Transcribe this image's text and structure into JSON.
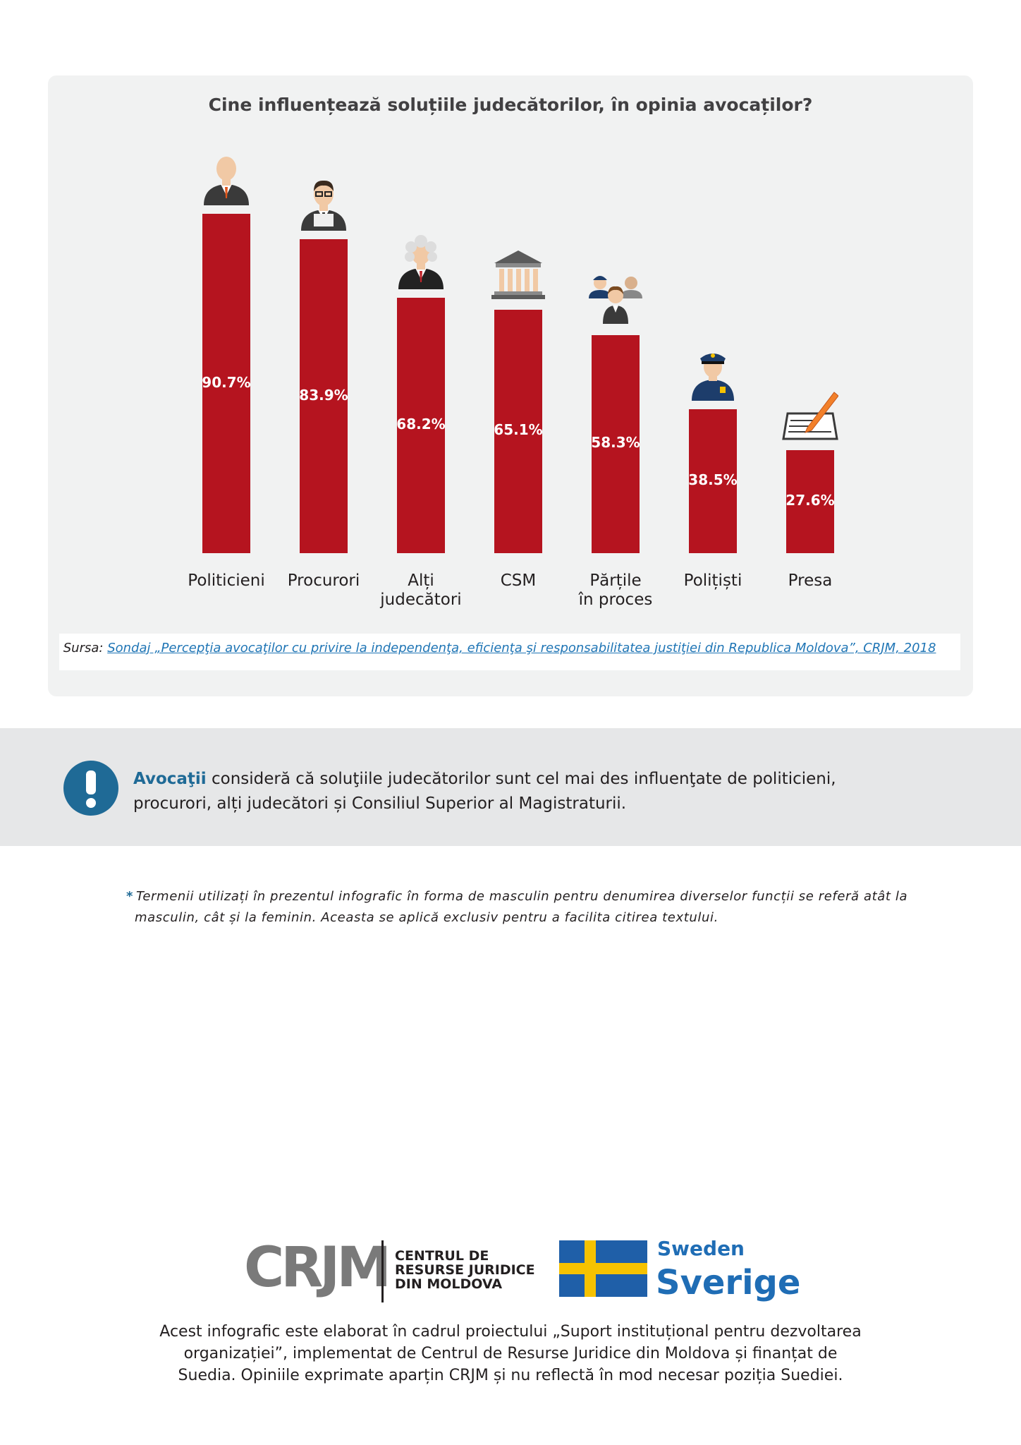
{
  "chart_data": {
    "type": "bar",
    "title": "Cine influențează soluțiile judecătorilor, în opinia avocaților?",
    "categories": [
      "Politicieni",
      "Procurori",
      "Alți\njudecători",
      "CSM",
      "Părțile\nîn proces",
      "Polițiști",
      "Presa"
    ],
    "values": [
      90.7,
      83.9,
      68.2,
      65.1,
      58.3,
      38.5,
      27.6
    ],
    "value_labels": [
      "90.7%",
      "83.9%",
      "68.2%",
      "65.1%",
      "58.3%",
      "38.5%",
      "27.6%"
    ],
    "color": "#b5141f"
  },
  "source": {
    "label": "Sursa:",
    "text": "Sondaj „Percepţia avocaţilor cu privire la independenţa, eficienţa şi responsabilitatea justiţiei din Republica Moldova”, CRJM, 2018"
  },
  "callout": {
    "highlight": "Avocaţii",
    "text": "consideră că soluţiile judecătorilor sunt cel mai des influenţate de politicieni, procurori, alți judecători și Consiliul Superior al Magistraturii."
  },
  "footnote": {
    "marker": "*",
    "text": "Termenii utilizați în prezentul infografic în forma de masculin pentru denumirea diverselor funcții se referă atât la masculin, cât și la feminin. Aceasta se aplică exclusiv pentru a facilita citirea textului."
  },
  "logos": {
    "crjm": "CRJM",
    "crjm_name": [
      "CENTRUL DE",
      "RESURSE JURIDICE",
      "DIN MOLDOVA"
    ],
    "sweden": "Sweden",
    "sverige": "Sverige"
  },
  "footer": "Acest infografic este elaborat în cadrul proiectului „Suport instituțional pentru dezvoltarea organizației”, implementat de Centrul de Resurse Juridice din Moldova și finanțat de Suedia. Opiniile exprimate aparțin CRJM și nu reflectă în mod necesar poziția Suediei."
}
